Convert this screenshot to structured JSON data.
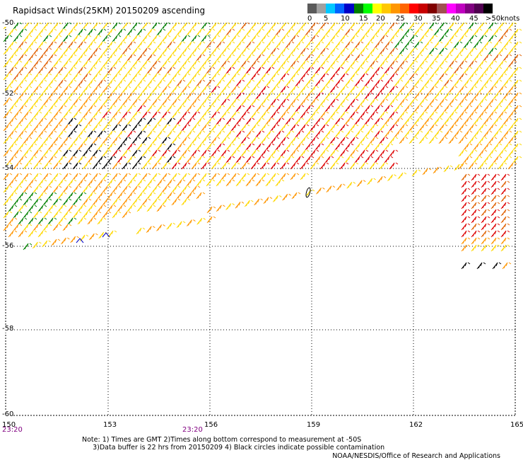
{
  "title": "Rapidsact Winds(25KM) 20150209 ascending",
  "legend": {
    "ticks": [
      "0",
      "5",
      "10",
      "15",
      "20",
      "25",
      "30",
      "35",
      "40",
      "45",
      ">50"
    ],
    "units": "knots",
    "colors": [
      "#5a5a5a",
      "#a0a0a0",
      "#00c8ff",
      "#0064ff",
      "#0000c8",
      "#008000",
      "#00ff00",
      "#ffff00",
      "#ffc800",
      "#ff9600",
      "#ff6400",
      "#ff0000",
      "#c80000",
      "#800000",
      "#a05050",
      "#ff00ff",
      "#c000c0",
      "#800080",
      "#500050",
      "#000000"
    ]
  },
  "axes": {
    "lat_labels": [
      "-50",
      "-52",
      "-54",
      "-56",
      "-58",
      "-60"
    ],
    "lon_labels": [
      "150",
      "153",
      "156",
      "159",
      "162",
      "165"
    ],
    "time_labels": [
      "23:20",
      "23:20"
    ]
  },
  "notes": {
    "line1": "Note: 1) Times are GMT 2)Times along bottom correspond to measurement at -50S",
    "line2": "3)Data buffer is 22 hrs from 20150209 4) Black circles indicate possible contamination"
  },
  "credit": "NOAA/NESDIS/Office of Research and Applications",
  "palette": {
    "green": "#008000",
    "yellow": "#ffd800",
    "orange": "#ff9600",
    "dark_orange": "#e06000",
    "red": "#dd0000",
    "black": "#000000",
    "blue": "#0000c8"
  }
}
